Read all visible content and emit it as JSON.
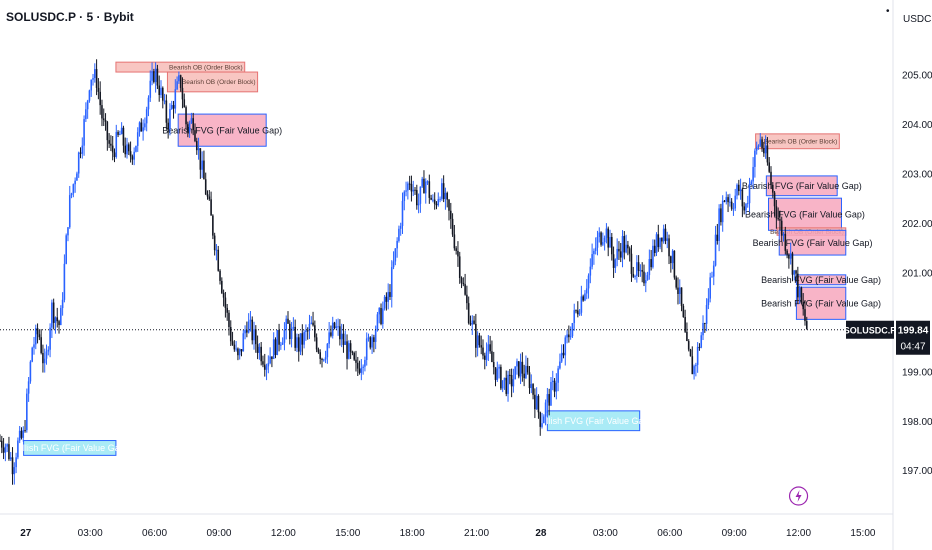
{
  "header": {
    "symbol": "SOLUSDC.P · 5 · Bybit",
    "currency": "USDC",
    "dot": "•"
  },
  "price_label": {
    "symbol": "SOLUSDC.P",
    "price": "199.84",
    "countdown": "04:47"
  },
  "colors": {
    "up": "#2962ff",
    "down": "#131722",
    "bearish_fill": "#f7a7bd",
    "bearish_border": "#2962ff",
    "bullish_fill": "#9be7f5",
    "bullish_border": "#2962ff",
    "ob_fill": "#f5b3ad",
    "ob_border": "#e57373",
    "lightning": "#9c27b0"
  },
  "lightning_icon": "lightning-icon",
  "chart_data": {
    "type": "candlestick",
    "title": "SOLUSDC.P · 5 · Bybit",
    "ylim": [
      196.6,
      205.9
    ],
    "y_ticks": [
      205.0,
      204.0,
      203.0,
      202.0,
      201.0,
      200.0,
      199.0,
      198.0,
      197.0
    ],
    "y_tick_labels": [
      "205.00",
      "204.00",
      "203.00",
      "202.00",
      "201.00",
      "200.00",
      "199.00",
      "198.00",
      "197.00"
    ],
    "x_ticks": [
      {
        "t": 0,
        "label": "27"
      },
      {
        "t": 3,
        "label": "03:00"
      },
      {
        "t": 6,
        "label": "06:00"
      },
      {
        "t": 9,
        "label": "09:00"
      },
      {
        "t": 12,
        "label": "12:00"
      },
      {
        "t": 15,
        "label": "15:00"
      },
      {
        "t": 18,
        "label": "18:00"
      },
      {
        "t": 21,
        "label": "21:00"
      },
      {
        "t": 24,
        "label": "28"
      },
      {
        "t": 27,
        "label": "03:00"
      },
      {
        "t": 30,
        "label": "06:00"
      },
      {
        "t": 33,
        "label": "09:00"
      },
      {
        "t": 36,
        "label": "12:00"
      },
      {
        "t": 39,
        "label": "15:00"
      }
    ],
    "xlim": [
      -1.2,
      40.4
    ],
    "current_price": 199.84,
    "price_path": [
      [
        -1.2,
        197.6
      ],
      [
        -0.9,
        197.5
      ],
      [
        -0.6,
        197.1
      ],
      [
        -0.4,
        197.5
      ],
      [
        -0.1,
        197.7
      ],
      [
        0.3,
        199.5
      ],
      [
        0.6,
        199.8
      ],
      [
        0.9,
        199.0
      ],
      [
        1.2,
        200.3
      ],
      [
        1.6,
        199.9
      ],
      [
        2.0,
        202.3
      ],
      [
        2.4,
        203.2
      ],
      [
        2.8,
        204.2
      ],
      [
        3.0,
        205.0
      ],
      [
        3.3,
        204.9
      ],
      [
        3.6,
        204.0
      ],
      [
        4.0,
        203.4
      ],
      [
        4.4,
        203.8
      ],
      [
        4.8,
        203.3
      ],
      [
        5.2,
        203.7
      ],
      [
        5.6,
        204.3
      ],
      [
        6.0,
        205.1
      ],
      [
        6.3,
        204.6
      ],
      [
        6.6,
        204.0
      ],
      [
        6.9,
        204.5
      ],
      [
        7.2,
        204.9
      ],
      [
        7.5,
        203.9
      ],
      [
        7.8,
        204.1
      ],
      [
        8.1,
        203.3
      ],
      [
        8.5,
        202.4
      ],
      [
        8.9,
        201.4
      ],
      [
        9.3,
        200.3
      ],
      [
        9.6,
        199.6
      ],
      [
        9.9,
        199.2
      ],
      [
        10.3,
        200.0
      ],
      [
        10.7,
        199.6
      ],
      [
        11.2,
        199.2
      ],
      [
        11.7,
        199.6
      ],
      [
        12.2,
        199.9
      ],
      [
        12.7,
        199.5
      ],
      [
        13.3,
        199.9
      ],
      [
        13.8,
        199.3
      ],
      [
        14.4,
        199.9
      ],
      [
        14.9,
        199.5
      ],
      [
        15.4,
        199.0
      ],
      [
        15.9,
        199.5
      ],
      [
        16.4,
        200.0
      ],
      [
        16.9,
        200.5
      ],
      [
        17.3,
        201.6
      ],
      [
        17.6,
        202.5
      ],
      [
        17.9,
        202.9
      ],
      [
        18.3,
        202.4
      ],
      [
        18.6,
        202.9
      ],
      [
        19.0,
        202.3
      ],
      [
        19.3,
        202.7
      ],
      [
        19.7,
        202.2
      ],
      [
        20.1,
        201.4
      ],
      [
        20.5,
        200.4
      ],
      [
        21.0,
        199.6
      ],
      [
        21.5,
        199.4
      ],
      [
        22.0,
        198.9
      ],
      [
        22.5,
        198.7
      ],
      [
        23.0,
        199.1
      ],
      [
        23.5,
        198.8
      ],
      [
        24.0,
        198.0
      ],
      [
        24.3,
        198.4
      ],
      [
        24.6,
        198.7
      ],
      [
        25.0,
        199.3
      ],
      [
        25.4,
        199.9
      ],
      [
        25.8,
        200.4
      ],
      [
        26.2,
        200.9
      ],
      [
        26.6,
        201.6
      ],
      [
        27.0,
        201.9
      ],
      [
        27.4,
        201.2
      ],
      [
        27.8,
        201.6
      ],
      [
        28.2,
        201.2
      ],
      [
        28.7,
        200.8
      ],
      [
        29.2,
        201.4
      ],
      [
        29.7,
        201.9
      ],
      [
        30.1,
        201.3
      ],
      [
        30.5,
        200.4
      ],
      [
        30.8,
        199.4
      ],
      [
        31.1,
        199.0
      ],
      [
        31.4,
        199.6
      ],
      [
        31.7,
        200.2
      ],
      [
        32.0,
        201.2
      ],
      [
        32.3,
        202.1
      ],
      [
        32.6,
        202.6
      ],
      [
        32.9,
        202.4
      ],
      [
        33.2,
        202.7
      ],
      [
        33.5,
        202.2
      ],
      [
        33.8,
        203.0
      ],
      [
        34.0,
        203.4
      ],
      [
        34.2,
        203.7
      ],
      [
        34.5,
        203.3
      ],
      [
        34.8,
        202.6
      ],
      [
        35.1,
        202.0
      ],
      [
        35.4,
        201.6
      ],
      [
        35.7,
        201.2
      ],
      [
        36.0,
        200.6
      ],
      [
        36.2,
        200.2
      ],
      [
        36.4,
        199.84
      ]
    ],
    "zones": [
      {
        "type": "bearish_ob",
        "label": "Bearish OB (Order Block)",
        "t0": 4.2,
        "t1": 10.2,
        "y_top": 205.25,
        "y_bot": 205.05
      },
      {
        "type": "bearish_ob",
        "label": "Bearish OB (Order Block)",
        "t0": 6.6,
        "t1": 10.8,
        "y_top": 205.05,
        "y_bot": 204.65
      },
      {
        "type": "bearish_fvg",
        "label": "Bearish FVG (Fair Value Gap)",
        "t0": 7.1,
        "t1": 11.2,
        "y_top": 204.2,
        "y_bot": 203.55
      },
      {
        "type": "bullish_fvg",
        "label": "Bullish FVG (Fair Value Gap)",
        "t0": -0.1,
        "t1": 4.2,
        "y_top": 197.6,
        "y_bot": 197.3
      },
      {
        "type": "bullish_fvg",
        "label": "Bullish FVG (Fair Value Gap)",
        "t0": 24.3,
        "t1": 28.6,
        "y_top": 198.2,
        "y_bot": 197.8
      },
      {
        "type": "bearish_ob",
        "label": "Bearish OB (Order Block)",
        "t0": 34.0,
        "t1": 37.9,
        "y_top": 203.8,
        "y_bot": 203.5
      },
      {
        "type": "bearish_fvg",
        "label": "Bearish FVG (Fair Value Gap)",
        "t0": 34.5,
        "t1": 37.8,
        "y_top": 202.95,
        "y_bot": 202.55
      },
      {
        "type": "bearish_fvg",
        "label": "Bearish FVG (Fair Value Gap)",
        "t0": 34.6,
        "t1": 38.0,
        "y_top": 202.5,
        "y_bot": 201.85
      },
      {
        "type": "bearish_ob",
        "label": "Bearish OB (Order Block)",
        "t0": 35.0,
        "t1": 38.2,
        "y_top": 201.9,
        "y_bot": 201.75
      },
      {
        "type": "bearish_fvg",
        "label": "Bearish FVG (Fair Value Gap)",
        "t0": 35.1,
        "t1": 38.2,
        "y_top": 201.85,
        "y_bot": 201.35
      },
      {
        "type": "bearish_fvg",
        "label": "Bearish FVG (Fair Value Gap)",
        "t0": 35.9,
        "t1": 38.2,
        "y_top": 200.95,
        "y_bot": 200.75
      },
      {
        "type": "bearish_fvg",
        "label": "Bearish FVG (Fair Value Gap)",
        "t0": 35.9,
        "t1": 38.2,
        "y_top": 200.7,
        "y_bot": 200.05
      }
    ]
  }
}
